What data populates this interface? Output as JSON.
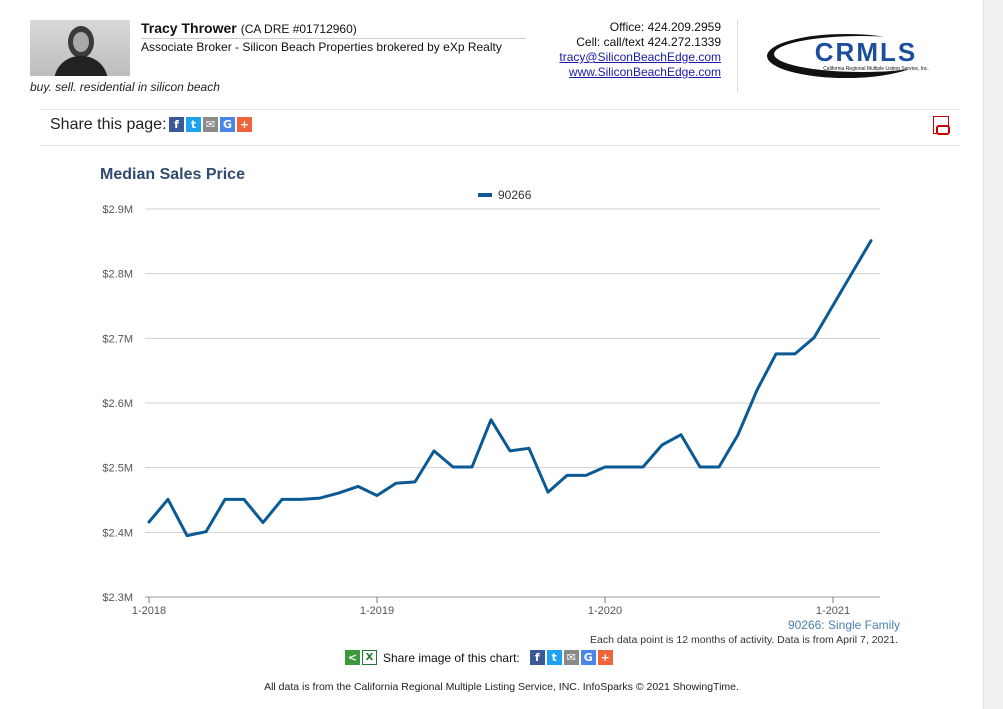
{
  "agent": {
    "name": "Tracy Thrower",
    "dre": "(CA DRE #01712960)",
    "title": "Associate Broker - Silicon Beach Properties brokered by eXp Realty",
    "tagline": "buy. sell. residential in silicon beach"
  },
  "contact": {
    "office": "Office: 424.209.2959",
    "cell": "Cell: call/text 424.272.1339",
    "email": "tracy@SiliconBeachEdge.com",
    "website": "www.SiliconBeachEdge.com"
  },
  "logo": {
    "text": "CRMLS",
    "subtext": "California Regional Multiple Listing Service, Inc.",
    "color": "#1b4f9c"
  },
  "share_page": {
    "label": "Share this page:",
    "icons": [
      "facebook-icon",
      "twitter-icon",
      "email-icon",
      "google-icon",
      "plus-icon"
    ]
  },
  "pdf_icon": "pdf-icon",
  "chart_share": {
    "label": "Share image of this chart:"
  },
  "notes": {
    "series": "90266: Single Family",
    "data": "Each data point is 12 months of activity. Data is from April 7, 2021."
  },
  "footer": "All data is from the California Regional Multiple Listing Service, INC. InfoSparks © 2021 ShowingTime.",
  "chart_data": {
    "type": "line",
    "title": "Median Sales Price",
    "xlabel": "",
    "ylabel": "",
    "ylim": [
      2.3,
      2.9
    ],
    "yticks": [
      "$2.3M",
      "$2.4M",
      "$2.5M",
      "$2.6M",
      "$2.7M",
      "$2.8M",
      "$2.9M"
    ],
    "xticks": [
      "1-2018",
      "1-2019",
      "1-2020",
      "1-2021"
    ],
    "grid": true,
    "legend_placement": "top-center",
    "line_color": "#0b5a94",
    "series": [
      {
        "name": "90266",
        "x": [
          "2018-01",
          "2018-02",
          "2018-03",
          "2018-04",
          "2018-05",
          "2018-06",
          "2018-07",
          "2018-08",
          "2018-09",
          "2018-10",
          "2018-11",
          "2018-12",
          "2019-01",
          "2019-02",
          "2019-03",
          "2019-04",
          "2019-05",
          "2019-06",
          "2019-07",
          "2019-08",
          "2019-09",
          "2019-10",
          "2019-11",
          "2019-12",
          "2020-01",
          "2020-02",
          "2020-03",
          "2020-04",
          "2020-05",
          "2020-06",
          "2020-07",
          "2020-08",
          "2020-09",
          "2020-10",
          "2020-11",
          "2020-12",
          "2021-01",
          "2021-02",
          "2021-03"
        ],
        "values": [
          2.416,
          2.451,
          2.395,
          2.401,
          2.451,
          2.451,
          2.415,
          2.451,
          2.451,
          2.453,
          2.461,
          2.471,
          2.457,
          2.476,
          2.478,
          2.526,
          2.501,
          2.501,
          2.574,
          2.526,
          2.53,
          2.462,
          2.488,
          2.488,
          2.501,
          2.501,
          2.501,
          2.535,
          2.551,
          2.501,
          2.501,
          2.551,
          2.62,
          2.676,
          2.676,
          2.701,
          2.751,
          2.801,
          2.851
        ]
      }
    ]
  }
}
